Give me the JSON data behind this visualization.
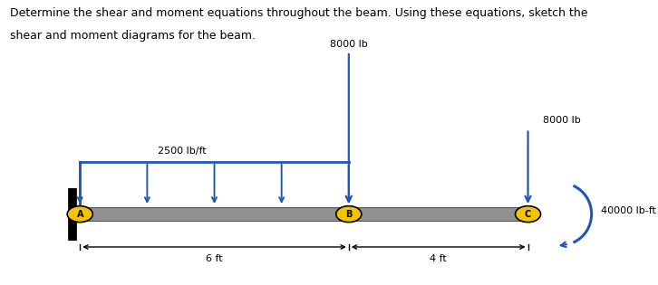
{
  "title_line1": "Determine the shear and moment equations throughout the beam. Using these equations, sketch the",
  "title_line2": "shear and moment diagrams for the beam.",
  "beam_color": "#909090",
  "section_AB": 6.0,
  "section_BC": 4.0,
  "dist_load_label": "2500 lb/ft",
  "point_load_B_label": "8000 lb",
  "point_load_C_label": "8000 lb",
  "moment_label": "40000 lb-ft",
  "label_A": "A",
  "label_B": "B",
  "label_C": "C",
  "arrow_color": "#2255bb",
  "node_fill_color": "#f5c400",
  "node_edge_color": "#000000",
  "wall_color": "#000000",
  "text_color": "#000000",
  "background_color": "#ffffff"
}
